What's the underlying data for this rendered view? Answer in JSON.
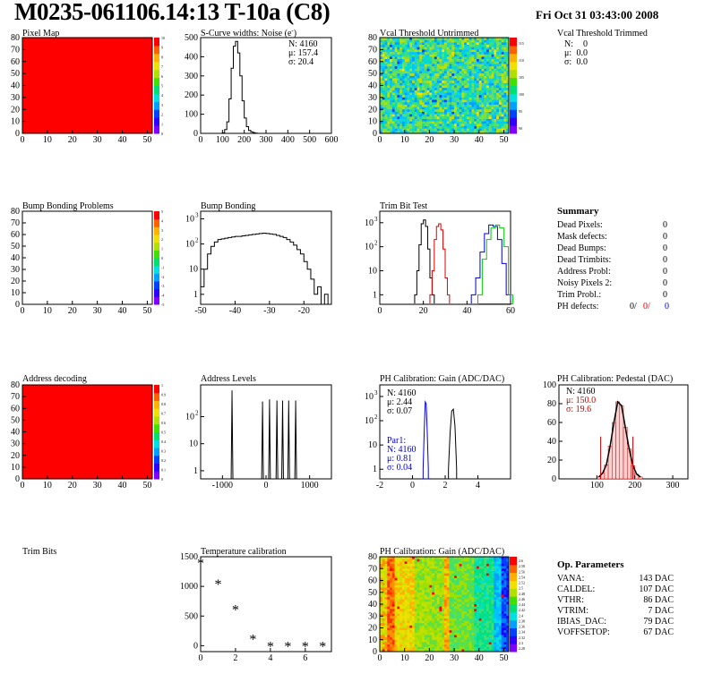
{
  "header": {
    "title": "M0235-061106.14:13 T-10a (C8)",
    "date": "Fri Oct 31 03:43:00 2008"
  },
  "panels": {
    "pixel_map": {
      "title": "Pixel Map",
      "x_ticks": [
        "0",
        "10",
        "20",
        "30",
        "40",
        "50"
      ],
      "y_ticks": [
        "0",
        "10",
        "20",
        "30",
        "40",
        "50",
        "60",
        "70",
        "80"
      ],
      "z_ticks": [
        "0",
        "1",
        "2",
        "3",
        "4",
        "5",
        "6",
        "7",
        "8",
        "9",
        "10"
      ],
      "fill_color": "#ff0000"
    },
    "scurve": {
      "title": "S-Curve widths: Noise (e",
      "title_sup": "-",
      "title_end": ")",
      "stats": [
        "N: 4160",
        "μ: 157.4",
        "σ: 20.4"
      ],
      "x_ticks": [
        "0",
        "100",
        "200",
        "300",
        "400",
        "500",
        "600"
      ],
      "y_ticks": [
        "0",
        "100",
        "200",
        "300",
        "400",
        "500"
      ]
    },
    "vcal_untrimmed": {
      "title": "Vcal Threshold Untrimmed",
      "x_ticks": [
        "0",
        "10",
        "20",
        "30",
        "40",
        "50"
      ],
      "y_ticks": [
        "0",
        "10",
        "20",
        "30",
        "40",
        "50",
        "60",
        "70",
        "80"
      ],
      "z_ticks": [
        "90",
        "95",
        "100",
        "105",
        "110",
        "115"
      ]
    },
    "vcal_trimmed": {
      "title": "Vcal Threshold Trimmed",
      "stats": [
        {
          "k": "N:",
          "v": "0"
        },
        {
          "k": "μ:",
          "v": "0.0"
        },
        {
          "k": "σ:",
          "v": "0.0"
        }
      ]
    },
    "bump_problems": {
      "title": "Bump Bonding Problems",
      "x_ticks": [
        "0",
        "10",
        "20",
        "30",
        "40",
        "50"
      ],
      "y_ticks": [
        "0",
        "10",
        "20",
        "30",
        "40",
        "50",
        "60",
        "70",
        "80"
      ],
      "z_ticks": [
        "-5",
        "-4",
        "-3",
        "-2",
        "-1",
        "0",
        "1",
        "2",
        "3",
        "4",
        "5"
      ]
    },
    "bump_bonding": {
      "title": "Bump Bonding",
      "x_ticks": [
        "-50",
        "-40",
        "-30",
        "-20"
      ],
      "y_ticks": [
        "1",
        "10",
        "10",
        "10"
      ],
      "y_exp": [
        "",
        "",
        "2",
        "3"
      ]
    },
    "trim_bit": {
      "title": "Trim Bit Test",
      "x_ticks": [
        "0",
        "20",
        "40",
        "60"
      ],
      "y_ticks": [
        "1",
        "10",
        "10",
        "10"
      ],
      "y_exp": [
        "",
        "",
        "2",
        "3"
      ]
    },
    "summary": {
      "title": "Summary",
      "rows": [
        {
          "label": "Dead Pixels:",
          "value": "0"
        },
        {
          "label": "Mask defects:",
          "value": "0"
        },
        {
          "label": "Dead Bumps:",
          "value": "0"
        },
        {
          "label": "Dead Trimbits:",
          "value": "0"
        },
        {
          "label": "Address Probl:",
          "value": "0"
        },
        {
          "label": "Noisy Pixels 2:",
          "value": "0"
        },
        {
          "label": "Trim Probl.:",
          "value": "0"
        }
      ],
      "ph_label": "PH defects:",
      "ph_values": [
        {
          "v": "0/",
          "c": "#000000"
        },
        {
          "v": "0/",
          "c": "#cc0000"
        },
        {
          "v": "0",
          "c": "#0000cc"
        }
      ]
    },
    "address_decoding": {
      "title": "Address decoding",
      "x_ticks": [
        "0",
        "10",
        "20",
        "30",
        "40",
        "50"
      ],
      "y_ticks": [
        "0",
        "10",
        "20",
        "30",
        "40",
        "50",
        "60",
        "70",
        "80"
      ],
      "z_ticks": [
        "0",
        "0.1",
        "0.2",
        "0.3",
        "0.4",
        "0.5",
        "0.6",
        "0.7",
        "0.8",
        "0.9",
        "1"
      ],
      "fill_color": "#ff0000"
    },
    "address_levels": {
      "title": "Address Levels",
      "x_ticks": [
        "-1000",
        "0",
        "1000"
      ],
      "y_ticks": [
        "1",
        "10",
        "10"
      ],
      "y_exp": [
        "",
        "",
        "2"
      ]
    },
    "ph_gain": {
      "title": "PH Calibration: Gain (ADC/DAC)",
      "stats": [
        "N: 4160",
        "μ: 2.44",
        "σ: 0.07"
      ],
      "par_stats": [
        "Par1:",
        "N: 4160",
        "μ: 0.81",
        "σ: 0.04"
      ],
      "x_ticks": [
        "-2",
        "0",
        "2",
        "4"
      ],
      "y_ticks": [
        "1",
        "10",
        "10",
        "10"
      ],
      "y_exp": [
        "",
        "",
        "2",
        "3"
      ]
    },
    "ph_pedestal": {
      "title": "PH Calibration: Pedestal (DAC)",
      "stats": [
        "N: 4160",
        "μ: 150.0",
        "σ: 19.6"
      ],
      "x_ticks": [
        "100",
        "200",
        "300"
      ],
      "y_ticks": [
        "0",
        "20",
        "40",
        "60",
        "80",
        "100"
      ]
    },
    "trim_bits": {
      "title": "Trim Bits"
    },
    "temperature": {
      "title": "Temperature calibration",
      "x_ticks": [
        "0",
        "2",
        "4",
        "6"
      ],
      "y_ticks": [
        "0",
        "500",
        "1000",
        "1500"
      ]
    },
    "ph_gain_map": {
      "title": "PH Calibration: Gain (ADC/DAC)",
      "x_ticks": [
        "0",
        "10",
        "20",
        "30",
        "40",
        "50"
      ],
      "y_ticks": [
        "0",
        "10",
        "20",
        "30",
        "40",
        "50",
        "60",
        "70",
        "80"
      ],
      "z_ticks": [
        "2.28",
        "2.3",
        "2.32",
        "2.34",
        "2.36",
        "2.38",
        "2.4",
        "2.42",
        "2.44",
        "2.46",
        "2.48",
        "2.5",
        "2.52",
        "2.54",
        "2.56",
        "2.58",
        "2.6"
      ]
    },
    "op_params": {
      "title": "Op. Parameters",
      "rows": [
        {
          "label": "VANA:",
          "value": "143 DAC"
        },
        {
          "label": "CALDEL:",
          "value": "107 DAC"
        },
        {
          "label": "VTHR:",
          "value": "86 DAC"
        },
        {
          "label": "VTRIM:",
          "value": "7 DAC"
        },
        {
          "label": "IBIAS_DAC:",
          "value": "79 DAC"
        },
        {
          "label": "VOFFSETOP:",
          "value": "67 DAC"
        }
      ]
    }
  },
  "chart_data": [
    {
      "type": "heatmap",
      "title": "Pixel Map",
      "xlim": [
        0,
        52
      ],
      "ylim": [
        0,
        80
      ],
      "zlim": [
        0,
        10
      ],
      "uniform_value": 10
    },
    {
      "type": "bar",
      "title": "S-Curve widths: Noise (e-)",
      "xlim": [
        0,
        600
      ],
      "ylim": [
        0,
        500
      ],
      "x": [
        100,
        110,
        120,
        130,
        140,
        150,
        160,
        170,
        180,
        190,
        200,
        210,
        220,
        230,
        240,
        250
      ],
      "values": [
        3,
        20,
        60,
        180,
        340,
        455,
        480,
        420,
        300,
        170,
        80,
        35,
        15,
        8,
        4,
        1
      ]
    },
    {
      "type": "heatmap",
      "title": "Vcal Threshold Untrimmed",
      "xlim": [
        0,
        52
      ],
      "ylim": [
        0,
        80
      ],
      "zlim": [
        87,
        117
      ]
    },
    {
      "type": "heatmap",
      "title": "Bump Bonding Problems",
      "xlim": [
        0,
        52
      ],
      "ylim": [
        0,
        80
      ],
      "zlim": [
        -5,
        5
      ]
    },
    {
      "type": "bar",
      "title": "Bump Bonding",
      "log_y": true,
      "xlim": [
        -50,
        -12
      ],
      "x": [
        -50,
        -49,
        -48,
        -47,
        -46,
        -45,
        -44,
        -43,
        -42,
        -41,
        -40,
        -39,
        -38,
        -37,
        -36,
        -35,
        -34,
        -33,
        -32,
        -31,
        -30,
        -29,
        -28,
        -27,
        -26,
        -25,
        -24,
        -23,
        -22,
        -21,
        -20,
        -19,
        -18,
        -17,
        -16,
        -15,
        -14
      ],
      "values": [
        2,
        10,
        40,
        80,
        120,
        150,
        160,
        170,
        180,
        190,
        200,
        200,
        210,
        220,
        230,
        240,
        250,
        260,
        270,
        260,
        250,
        240,
        220,
        200,
        180,
        150,
        120,
        90,
        60,
        40,
        20,
        10,
        4,
        1,
        2,
        0,
        1
      ]
    },
    {
      "type": "line",
      "title": "Trim Bit Test",
      "log_y": true,
      "xlim": [
        0,
        60
      ],
      "series": [
        {
          "color": "#000000",
          "x": [
            16,
            17,
            18,
            19,
            20,
            21,
            22,
            23,
            24
          ],
          "values": [
            1,
            10,
            120,
            900,
            1300,
            700,
            80,
            5,
            1
          ]
        },
        {
          "color": "#dd0000",
          "x": [
            23,
            24,
            25,
            26,
            27,
            28,
            29,
            30,
            31
          ],
          "values": [
            1,
            10,
            200,
            700,
            900,
            500,
            80,
            5,
            1
          ]
        },
        {
          "color": "#0000dd",
          "x": [
            42,
            44,
            46,
            48,
            50,
            52,
            54,
            56,
            58
          ],
          "values": [
            1,
            5,
            60,
            350,
            800,
            700,
            200,
            20,
            1
          ]
        },
        {
          "color": "#00cc00",
          "x": [
            45,
            47,
            49,
            51,
            53,
            55,
            57,
            59
          ],
          "values": [
            1,
            30,
            200,
            600,
            800,
            600,
            100,
            1
          ]
        }
      ]
    },
    {
      "type": "heatmap",
      "title": "Address decoding",
      "xlim": [
        0,
        52
      ],
      "ylim": [
        0,
        80
      ],
      "zlim": [
        0,
        1
      ],
      "uniform_value": 1
    },
    {
      "type": "bar",
      "title": "Address Levels",
      "log_y": true,
      "xlim": [
        -1500,
        1500
      ],
      "x": [
        -780,
        -80,
        80,
        250,
        380,
        520,
        680
      ],
      "values": [
        900,
        350,
        420,
        380,
        380,
        380,
        380
      ]
    },
    {
      "type": "line",
      "title": "PH Calibration: Gain (ADC/DAC)",
      "log_y": true,
      "xlim": [
        -2,
        6
      ],
      "series": [
        {
          "color": "#000000",
          "x": [
            2.2,
            2.3,
            2.4,
            2.5,
            2.6,
            2.7
          ],
          "values": [
            1,
            30,
            250,
            300,
            60,
            1
          ]
        },
        {
          "color": "#0000dd",
          "x": [
            0.65,
            0.72,
            0.78,
            0.84,
            0.9,
            0.97
          ],
          "values": [
            1,
            40,
            600,
            500,
            40,
            1
          ]
        }
      ]
    },
    {
      "type": "bar",
      "title": "PH Calibration: Pedestal (DAC)",
      "xlim": [
        0,
        340
      ],
      "ylim": [
        0,
        100
      ],
      "x": [
        100,
        110,
        120,
        130,
        140,
        150,
        160,
        170,
        180,
        190,
        200,
        210
      ],
      "values": [
        2,
        6,
        15,
        35,
        60,
        82,
        78,
        55,
        32,
        14,
        5,
        2
      ]
    },
    {
      "type": "scatter",
      "title": "Temperature calibration",
      "xlim": [
        0,
        7.5
      ],
      "ylim": [
        -100,
        1500
      ],
      "x": [
        0,
        1,
        2,
        3,
        4,
        5,
        6,
        7
      ],
      "values": [
        1400,
        1050,
        620,
        120,
        0,
        0,
        0,
        0
      ]
    },
    {
      "type": "heatmap",
      "title": "PH Calibration: Gain (ADC/DAC)",
      "xlim": [
        0,
        52
      ],
      "ylim": [
        0,
        80
      ],
      "zlim": [
        2.27,
        2.62
      ]
    }
  ]
}
